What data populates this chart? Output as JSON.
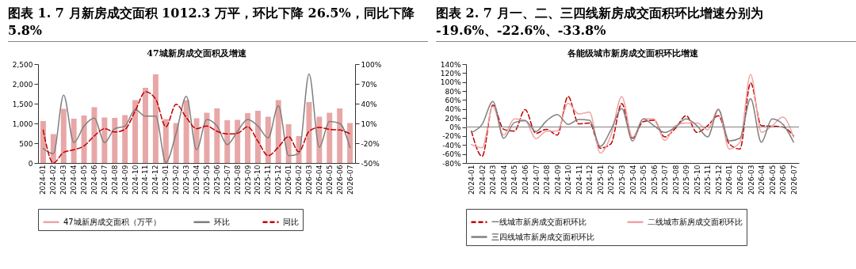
{
  "chart_data": [
    {
      "type": "bar",
      "title": "图表 1. 7 月新房成交面积 1012.3 万平，环比下降 26.5%，同比下降 5.8%",
      "subtitle": "47城新房成交面积及增速",
      "categories": [
        "2024-01",
        "2024-02",
        "2024-03",
        "2024-04",
        "2024-05",
        "2024-06",
        "2024-07",
        "2024-08",
        "2024-09",
        "2024-10",
        "2024-11",
        "2024-12",
        "2025-01",
        "2025-02",
        "2025-03",
        "2025-04",
        "2025-05",
        "2025-06",
        "2025-07",
        "2025-08",
        "2025-09",
        "2025-10",
        "2025-11",
        "2025-12",
        "2026-01",
        "2026-02",
        "2026-03",
        "2026-04",
        "2026-05",
        "2026-06",
        "2026-07"
      ],
      "series": [
        {
          "name": "47城新房成交面积（万平）",
          "color": "#e8a7a7",
          "values": [
            1060,
            730,
            1370,
            1120,
            1200,
            1410,
            1150,
            1140,
            1210,
            1590,
            1900,
            2240,
            1110,
            1010,
            1590,
            1130,
            1270,
            1380,
            1080,
            1090,
            1260,
            1320,
            1170,
            1590,
            980,
            680,
            1540,
            1170,
            1270,
            1380,
            1010
          ]
        },
        {
          "name": "环比",
          "type": "line",
          "axis": "y2",
          "color": "#7f7f7f",
          "values": [
            -28,
            -36,
            53,
            -19,
            6,
            18,
            -19,
            2,
            6,
            31,
            21,
            21,
            -49,
            -5,
            51,
            -30,
            16,
            6,
            -22,
            -2,
            16,
            6,
            -12,
            37,
            -39,
            -36,
            85,
            -26,
            13,
            10,
            -26.5
          ]
        },
        {
          "name": "同比",
          "type": "line",
          "axis": "y2",
          "color": "#c00000",
          "line_style": "dashed",
          "values": [
            0,
            -50,
            -34,
            -30,
            -24,
            -9,
            2,
            -3,
            1,
            29,
            58,
            47,
            5,
            39,
            19,
            2,
            6,
            -2,
            -6,
            -5,
            5,
            -17,
            -39,
            -26,
            -10,
            -33,
            -2,
            4,
            1,
            0,
            -5.8
          ]
        }
      ],
      "ylim": [
        0,
        2500
      ],
      "yticks": [
        0,
        {
          "value": 500,
          "label": "500"
        },
        {
          "value": 1000,
          "label": "1,000"
        },
        {
          "value": 1500,
          "label": "1,500"
        },
        {
          "value": 2000,
          "label": "2,000"
        },
        {
          "value": 2500,
          "label": "2,500"
        }
      ],
      "y2lim": [
        -50,
        100
      ],
      "y2ticks": [
        {
          "value": -50,
          "label": "-50%"
        },
        {
          "value": -20,
          "label": "-20%"
        },
        {
          "value": 10,
          "label": "10%"
        },
        {
          "value": 40,
          "label": "40%"
        },
        {
          "value": 70,
          "label": "70%"
        },
        {
          "value": 100,
          "label": "100%"
        }
      ],
      "legend": "bottom"
    },
    {
      "type": "line",
      "title": "图表 2. 7 月一、二、三四线新房成交面积环比增速分别为 -19.6%、-22.6%、-33.8%",
      "subtitle": "各能级城市新房成交面积环比增速",
      "categories": [
        "2024-01",
        "2024-02",
        "2024-03",
        "2024-04",
        "2024-05",
        "2024-06",
        "2024-07",
        "2024-08",
        "2024-09",
        "2024-10",
        "2024-11",
        "2024-12",
        "2025-01",
        "2025-02",
        "2025-03",
        "2025-04",
        "2025-05",
        "2025-06",
        "2025-07",
        "2025-08",
        "2025-09",
        "2025-10",
        "2025-11",
        "2025-12",
        "2026-01",
        "2026-02",
        "2026-03",
        "2026-04",
        "2026-05",
        "2026-06",
        "2026-07"
      ],
      "series": [
        {
          "name": "一线城市新房成交面积环比",
          "color": "#c00000",
          "line_style": "dashed",
          "values": [
            -9,
            -65,
            49,
            -5,
            -9,
            39,
            -14,
            -5,
            -18,
            68,
            7,
            9,
            -47,
            -37,
            52,
            -25,
            12,
            15,
            -22,
            -3,
            25,
            -12,
            3,
            25,
            -37,
            -49,
            98,
            3,
            2,
            0,
            -19.6
          ]
        },
        {
          "name": "二线城市新房成交面积环比",
          "color": "#f0a3a3",
          "values": [
            -39,
            -46,
            46,
            -18,
            18,
            15,
            -26,
            -9,
            -9,
            53,
            29,
            33,
            -58,
            -18,
            68,
            -23,
            18,
            18,
            -30,
            3,
            9,
            9,
            -6,
            40,
            -49,
            -34,
            117,
            -12,
            3,
            22,
            -22.6
          ]
        },
        {
          "name": "三四线城市新房成交面积环比",
          "color": "#808080",
          "values": [
            -12,
            6,
            57,
            -25,
            10,
            14,
            -10,
            14,
            28,
            6,
            17,
            15,
            -43,
            -6,
            41,
            -31,
            18,
            3,
            -12,
            0,
            18,
            3,
            -22,
            39,
            -31,
            -25,
            63,
            -34,
            18,
            6,
            -33.8
          ]
        }
      ],
      "ylim": [
        -80,
        140
      ],
      "yticks": [
        {
          "value": -80,
          "label": "-80%"
        },
        {
          "value": -60,
          "label": "-60%"
        },
        {
          "value": -40,
          "label": "-40%"
        },
        {
          "value": -20,
          "label": "-20%"
        },
        {
          "value": 0,
          "label": "0%"
        },
        {
          "value": 20,
          "label": "20%"
        },
        {
          "value": 40,
          "label": "40%"
        },
        {
          "value": 60,
          "label": "60%"
        },
        {
          "value": 80,
          "label": "80%"
        },
        {
          "value": 100,
          "label": "100%"
        },
        {
          "value": 120,
          "label": "120%"
        },
        {
          "value": 140,
          "label": "140%"
        }
      ],
      "ref_lines": [
        {
          "axis": "y",
          "value": 0,
          "color": "#808080"
        }
      ],
      "legend": "bottom"
    }
  ]
}
